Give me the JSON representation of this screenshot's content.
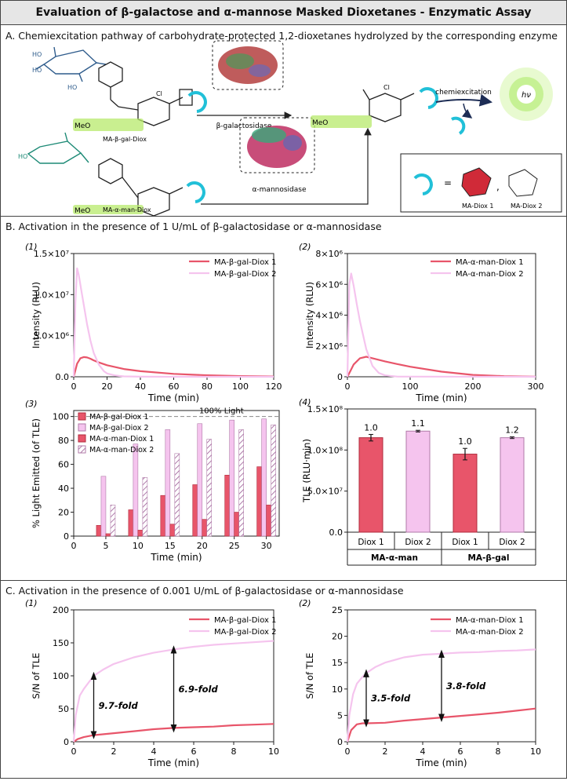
{
  "header": {
    "title": "Evaluation of β-galactose and α-mannose Masked Dioxetanes - Enzymatic Assay"
  },
  "section_a": {
    "heading": "A. Chemiexcitation pathway of carbohydrate-protected 1,2-dioxetanes hydrolyzed by the corresponding enzyme",
    "compound_top": "MA-β-gal-Diox",
    "compound_bottom": "MA-α-man-Diox",
    "enzyme_top": "β-galactosidase",
    "enzyme_bottom": "α-mannosidase",
    "step_label": "chemiexcitation",
    "light_label": "hν",
    "ester_label": "MeO",
    "cl_label": "Cl",
    "oh_label": "HO",
    "legend_diox1": "MA-Diox 1",
    "legend_diox2": "MA-Diox 2",
    "equals": "=",
    "comma": ","
  },
  "section_b": {
    "heading": "B. Activation in the presence of 1 U/mL of β-galactosidase or α-mannosidase"
  },
  "section_c": {
    "heading": "C. Activation in the presence of 0.001 U/mL of β-galactosidase or α-mannosidase"
  },
  "colors": {
    "diox1": "#e8556a",
    "diox2": "#f5c4ee",
    "diox1_edge": "#b02a3c",
    "diox2_edge": "#b07aa8"
  },
  "chart_data": [
    {
      "id": "B1",
      "panel_label": "(1)",
      "type": "line",
      "xlabel": "Time (min)",
      "ylabel": "Intensity (RLU)",
      "xlim": [
        0,
        120
      ],
      "ylim": [
        0,
        15000000
      ],
      "xticks": [
        0,
        20,
        40,
        60,
        80,
        100,
        120
      ],
      "yticks": [
        {
          "v": 0,
          "label": "0.0"
        },
        {
          "v": 5000000,
          "label": "5.0×10⁶"
        },
        {
          "v": 10000000,
          "label": "1.0×10⁷"
        },
        {
          "v": 15000000,
          "label": "1.5×10⁷"
        }
      ],
      "legend": "top-right",
      "series": [
        {
          "name": "MA-β-gal-Diox 1",
          "x": [
            0,
            2,
            4,
            6,
            8,
            10,
            12,
            15,
            20,
            30,
            40,
            60,
            80,
            100,
            120
          ],
          "y": [
            0,
            1600000,
            2250000,
            2400000,
            2350000,
            2200000,
            2000000,
            1750000,
            1400000,
            950000,
            680000,
            350000,
            180000,
            90000,
            40000
          ]
        },
        {
          "name": "MA-β-gal-Diox 2",
          "x": [
            0,
            1,
            2,
            3,
            5,
            8,
            10,
            12,
            15,
            18,
            20,
            25,
            30,
            40,
            60,
            120
          ],
          "y": [
            0,
            9000000,
            13200000,
            12400000,
            10000000,
            6400000,
            4400000,
            2900000,
            1500000,
            700000,
            400000,
            150000,
            50000,
            10000,
            0,
            0
          ]
        }
      ]
    },
    {
      "id": "B2",
      "panel_label": "(2)",
      "type": "line",
      "xlabel": "Time (min)",
      "ylabel": "Intensity (RLU)",
      "xlim": [
        0,
        300
      ],
      "ylim": [
        0,
        8000000
      ],
      "xticks": [
        0,
        100,
        200,
        300
      ],
      "yticks": [
        {
          "v": 0,
          "label": "0"
        },
        {
          "v": 2000000,
          "label": "2×10⁶"
        },
        {
          "v": 4000000,
          "label": "4×10⁶"
        },
        {
          "v": 6000000,
          "label": "6×10⁶"
        },
        {
          "v": 8000000,
          "label": "8×10⁶"
        }
      ],
      "legend": "top-right",
      "series": [
        {
          "name": "MA-α-man-Diox 1",
          "x": [
            0,
            5,
            10,
            20,
            30,
            40,
            60,
            80,
            100,
            150,
            200,
            250,
            300
          ],
          "y": [
            0,
            400000,
            800000,
            1200000,
            1300000,
            1200000,
            1000000,
            820000,
            650000,
            330000,
            120000,
            40000,
            10000
          ]
        },
        {
          "name": "MA-α-man-Diox 2",
          "x": [
            0,
            3,
            6,
            10,
            15,
            20,
            30,
            40,
            50,
            60,
            80,
            300
          ],
          "y": [
            0,
            6000000,
            6700000,
            5900000,
            4700000,
            3600000,
            1800000,
            700000,
            250000,
            90000,
            10000,
            0
          ]
        }
      ]
    },
    {
      "id": "B3",
      "panel_label": "(3)",
      "type": "bar",
      "xlabel": "Time (min)",
      "ylabel": "% Light Emitted (of TLE)",
      "xlim": [
        0,
        32
      ],
      "ylim": [
        0,
        105
      ],
      "xticks": [
        0,
        5,
        10,
        15,
        20,
        25,
        30
      ],
      "yticks": [
        {
          "v": 0,
          "label": "0"
        },
        {
          "v": 20,
          "label": "20"
        },
        {
          "v": 40,
          "label": "40"
        },
        {
          "v": 60,
          "label": "60"
        },
        {
          "v": 80,
          "label": "80"
        },
        {
          "v": 100,
          "label": "100"
        }
      ],
      "reference_line": {
        "value": 100,
        "label": "100% Light"
      },
      "categories": [
        5,
        10,
        15,
        20,
        25,
        30
      ],
      "legend": "top-left",
      "series": [
        {
          "name": "MA-β-gal-Diox 1",
          "values": [
            9,
            22,
            34,
            43,
            51,
            58
          ]
        },
        {
          "name": "MA-β-gal-Diox 2",
          "values": [
            50,
            77,
            89,
            94,
            97,
            98
          ]
        },
        {
          "name": "MA-α-man-Diox 1",
          "values": [
            2,
            5,
            10,
            14,
            20,
            26
          ]
        },
        {
          "name": "MA-α-man-Diox 2",
          "values": [
            26,
            49,
            69,
            81,
            89,
            93
          ]
        }
      ]
    },
    {
      "id": "B4",
      "panel_label": "(4)",
      "type": "bar",
      "ylabel": "TLE (RLU·min)",
      "ylim": [
        0,
        150000000
      ],
      "yticks": [
        {
          "v": 0,
          "label": "0.0"
        },
        {
          "v": 50000000,
          "label": "5.0×10⁷"
        },
        {
          "v": 100000000,
          "label": "1.0×10⁸"
        },
        {
          "v": 150000000,
          "label": "1.5×10⁸"
        }
      ],
      "categories": [
        "Diox 1",
        "Diox 2",
        "Diox 1",
        "Diox 2"
      ],
      "groups": [
        "MA-α-man",
        "MA-β-gal"
      ],
      "values": [
        115000000,
        123000000,
        95000000,
        115000000
      ],
      "errors": [
        4000000,
        1000000,
        7000000,
        1000000
      ],
      "bar_labels": [
        "1.0",
        "1.1",
        "1.0",
        "1.2"
      ]
    },
    {
      "id": "C1",
      "panel_label": "(1)",
      "type": "line",
      "xlabel": "Time (min)",
      "ylabel": "S/N of TLE",
      "xlim": [
        0,
        10
      ],
      "ylim": [
        0,
        200
      ],
      "xticks": [
        0,
        2,
        4,
        6,
        8,
        10
      ],
      "yticks": [
        {
          "v": 0,
          "label": "0"
        },
        {
          "v": 50,
          "label": "50"
        },
        {
          "v": 100,
          "label": "100"
        },
        {
          "v": 150,
          "label": "150"
        },
        {
          "v": 200,
          "label": "200"
        }
      ],
      "legend": "top-right",
      "annotations": [
        {
          "x": 1,
          "y_low": 10,
          "y_high": 100,
          "label": "9.7-fold"
        },
        {
          "x": 5,
          "y_low": 20,
          "y_high": 140,
          "label": "6.9-fold"
        }
      ],
      "series": [
        {
          "name": "MA-β-gal-Diox 1",
          "x": [
            0,
            0.2,
            0.5,
            1,
            2,
            3,
            4,
            5,
            6,
            7,
            8,
            9,
            10
          ],
          "y": [
            0,
            4,
            7,
            10,
            13,
            16,
            19,
            21,
            22,
            23,
            25,
            26,
            27
          ]
        },
        {
          "name": "MA-β-gal-Diox 2",
          "x": [
            0,
            0.1,
            0.3,
            0.5,
            0.8,
            1,
            1.5,
            2,
            3,
            4,
            5,
            6,
            7,
            8,
            9,
            10
          ],
          "y": [
            0,
            40,
            70,
            80,
            92,
            100,
            110,
            118,
            128,
            135,
            140,
            144,
            147,
            149,
            151,
            153
          ]
        }
      ]
    },
    {
      "id": "C2",
      "panel_label": "(2)",
      "type": "line",
      "xlabel": "Time (min)",
      "ylabel": "S/N of TLE",
      "xlim": [
        0,
        10
      ],
      "ylim": [
        0,
        25
      ],
      "xticks": [
        0,
        2,
        4,
        6,
        8,
        10
      ],
      "yticks": [
        {
          "v": 0,
          "label": "0"
        },
        {
          "v": 5,
          "label": "5"
        },
        {
          "v": 10,
          "label": "10"
        },
        {
          "v": 15,
          "label": "15"
        },
        {
          "v": 20,
          "label": "20"
        },
        {
          "v": 25,
          "label": "25"
        }
      ],
      "legend": "top-right",
      "annotations": [
        {
          "x": 1,
          "y_low": 3.5,
          "y_high": 13,
          "label": "3.5-fold"
        },
        {
          "x": 5,
          "y_low": 4.5,
          "y_high": 16.7,
          "label": "3.8-fold"
        }
      ],
      "series": [
        {
          "name": "MA-α-man-Diox 1",
          "x": [
            0,
            0.2,
            0.5,
            0.8,
            1,
            2,
            3,
            4,
            5,
            6,
            7,
            8,
            9,
            10
          ],
          "y": [
            0,
            2.2,
            3.3,
            3.5,
            3.5,
            3.6,
            4.0,
            4.3,
            4.6,
            4.9,
            5.2,
            5.5,
            5.9,
            6.3
          ]
        },
        {
          "name": "MA-α-man-Diox 2",
          "x": [
            0,
            0.1,
            0.3,
            0.5,
            0.8,
            1,
            1.5,
            2,
            3,
            4,
            5,
            6,
            7,
            8,
            9,
            10
          ],
          "y": [
            0,
            5,
            9,
            11,
            12.3,
            13,
            14.2,
            15,
            16,
            16.5,
            16.7,
            16.9,
            17.0,
            17.2,
            17.3,
            17.5
          ]
        }
      ]
    }
  ]
}
